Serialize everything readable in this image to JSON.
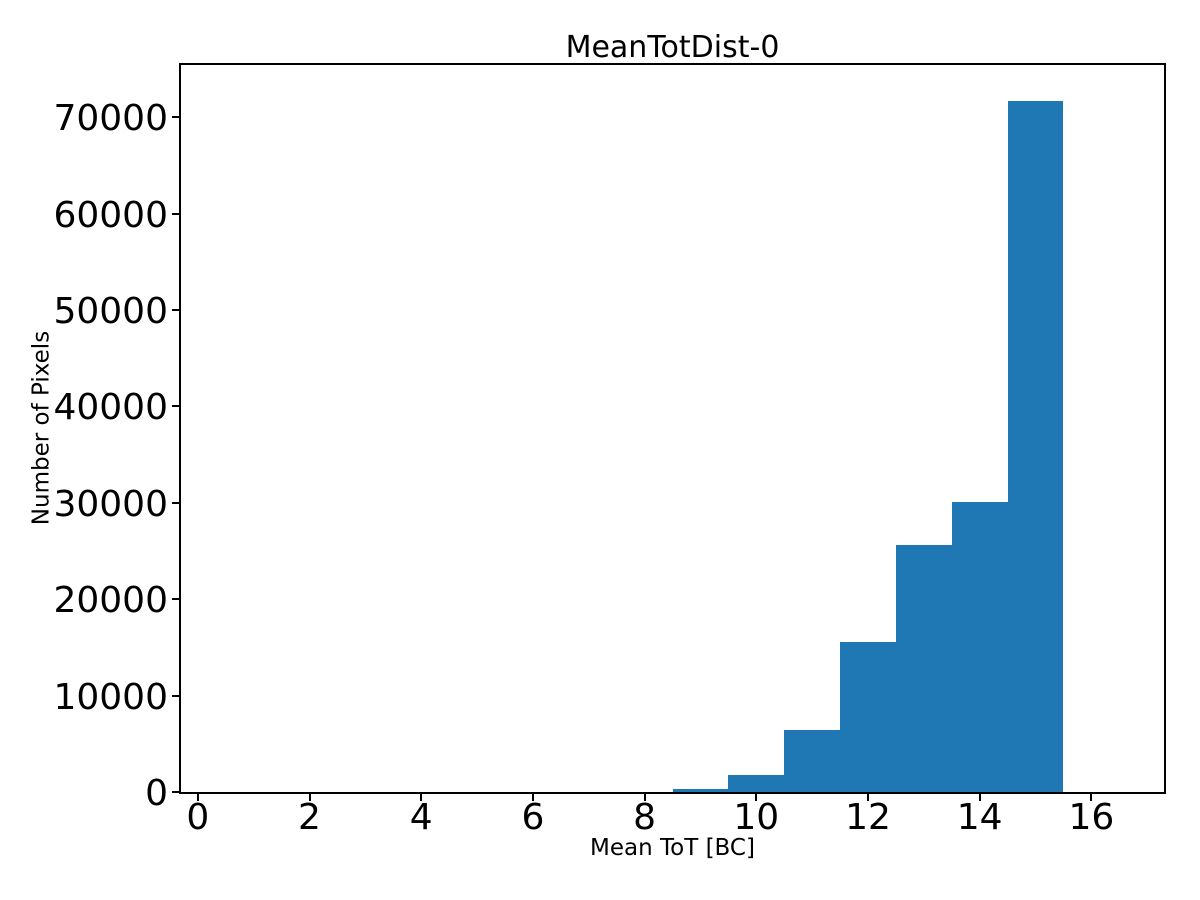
{
  "chart_data": {
    "type": "bar",
    "subtype": "histogram",
    "title": "MeanTotDist-0",
    "xlabel": "Mean ToT [BC]",
    "ylabel": "Number of Pixels",
    "bar_color": "#1f77b4",
    "background_color": "#ffffff",
    "grid": false,
    "legend": null,
    "xlim": [
      -0.3,
      17.3
    ],
    "ylim": [
      0,
      75400
    ],
    "xticks": [
      0,
      2,
      4,
      6,
      8,
      10,
      12,
      14,
      16
    ],
    "yticks": [
      0,
      10000,
      20000,
      30000,
      40000,
      50000,
      60000,
      70000
    ],
    "bin_width": 1,
    "bin_centers": [
      1,
      2,
      3,
      4,
      5,
      6,
      7,
      8,
      9,
      10,
      11,
      12,
      13,
      14,
      15,
      16
    ],
    "values": [
      0,
      0,
      0,
      0,
      0,
      0,
      0,
      0,
      310,
      1720,
      6460,
      15520,
      25650,
      30040,
      71640,
      0
    ]
  }
}
